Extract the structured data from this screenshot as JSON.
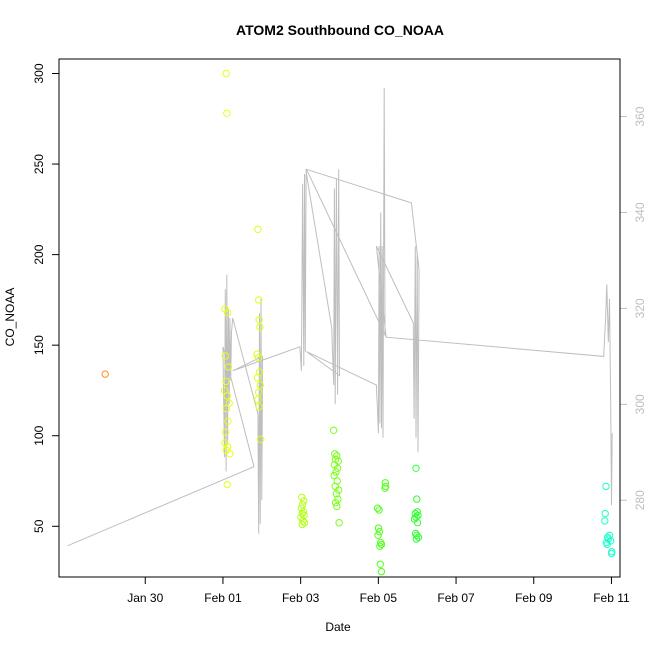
{
  "chart_data": {
    "type": "scatter",
    "title": "ATOM2 Southbound CO_NOAA",
    "xlabel": "Date",
    "ylabel": "CO_NOAA",
    "x_unit": "days from Jan 29",
    "xlim": [
      -1.22,
      13.22
    ],
    "ylim": [
      22,
      308
    ],
    "xticks": [
      {
        "v": 1,
        "label": "Jan 30"
      },
      {
        "v": 3,
        "label": "Feb 01"
      },
      {
        "v": 5,
        "label": "Feb 03"
      },
      {
        "v": 7,
        "label": "Feb 05"
      },
      {
        "v": 9,
        "label": "Feb 07"
      },
      {
        "v": 11,
        "label": "Feb 09"
      },
      {
        "v": 13,
        "label": "Feb 11"
      }
    ],
    "yticks": [
      50,
      100,
      150,
      200,
      250,
      300
    ],
    "y2lim": [
      264,
      372
    ],
    "y2ticks": [
      280,
      300,
      320,
      340,
      360
    ],
    "y2color": "#bebebe",
    "trace_color": "#bebebe",
    "points": [
      {
        "x": -0.03,
        "y": 134,
        "c": "#ff8c1a"
      },
      {
        "x": 3.08,
        "y": 300,
        "c": "#e6ff1a"
      },
      {
        "x": 3.1,
        "y": 278,
        "c": "#e6ff1a"
      },
      {
        "x": 3.05,
        "y": 170,
        "c": "#e6ff1a"
      },
      {
        "x": 3.12,
        "y": 168,
        "c": "#e6ff1a"
      },
      {
        "x": 3.06,
        "y": 144,
        "c": "#e6ff1a"
      },
      {
        "x": 3.14,
        "y": 138,
        "c": "#e6ff1a"
      },
      {
        "x": 3.08,
        "y": 130,
        "c": "#e6ff1a"
      },
      {
        "x": 3.04,
        "y": 125,
        "c": "#e6ff1a"
      },
      {
        "x": 3.11,
        "y": 122,
        "c": "#e6ff1a"
      },
      {
        "x": 3.16,
        "y": 118,
        "c": "#e6ff1a"
      },
      {
        "x": 3.09,
        "y": 115,
        "c": "#e6ff1a"
      },
      {
        "x": 3.13,
        "y": 108,
        "c": "#e6ff1a"
      },
      {
        "x": 3.07,
        "y": 102,
        "c": "#e6ff1a"
      },
      {
        "x": 3.05,
        "y": 96,
        "c": "#e6ff1a"
      },
      {
        "x": 3.12,
        "y": 94,
        "c": "#e6ff1a"
      },
      {
        "x": 3.09,
        "y": 92,
        "c": "#e6ff1a"
      },
      {
        "x": 3.18,
        "y": 90,
        "c": "#e6ff1a"
      },
      {
        "x": 3.11,
        "y": 73,
        "c": "#e6ff1a"
      },
      {
        "x": 3.9,
        "y": 214,
        "c": "#dcff1a"
      },
      {
        "x": 3.92,
        "y": 175,
        "c": "#dcff1a"
      },
      {
        "x": 3.93,
        "y": 164,
        "c": "#dcff1a"
      },
      {
        "x": 3.95,
        "y": 160,
        "c": "#dcff1a"
      },
      {
        "x": 3.88,
        "y": 145,
        "c": "#dcff1a"
      },
      {
        "x": 3.91,
        "y": 143,
        "c": "#dcff1a"
      },
      {
        "x": 3.94,
        "y": 135,
        "c": "#dcff1a"
      },
      {
        "x": 3.89,
        "y": 132,
        "c": "#dcff1a"
      },
      {
        "x": 3.96,
        "y": 128,
        "c": "#dcff1a"
      },
      {
        "x": 3.92,
        "y": 124,
        "c": "#dcff1a"
      },
      {
        "x": 3.9,
        "y": 120,
        "c": "#dcff1a"
      },
      {
        "x": 3.93,
        "y": 116,
        "c": "#dcff1a"
      },
      {
        "x": 3.97,
        "y": 98,
        "c": "#dcff1a"
      },
      {
        "x": 5.03,
        "y": 66,
        "c": "#b4ff1a"
      },
      {
        "x": 5.08,
        "y": 64,
        "c": "#b4ff1a"
      },
      {
        "x": 5.05,
        "y": 62,
        "c": "#b4ff1a"
      },
      {
        "x": 5.02,
        "y": 60,
        "c": "#b4ff1a"
      },
      {
        "x": 5.07,
        "y": 58,
        "c": "#b4ff1a"
      },
      {
        "x": 5.04,
        "y": 57,
        "c": "#b4ff1a"
      },
      {
        "x": 5.09,
        "y": 56,
        "c": "#b4ff1a"
      },
      {
        "x": 5.01,
        "y": 55,
        "c": "#b4ff1a"
      },
      {
        "x": 5.06,
        "y": 53,
        "c": "#b4ff1a"
      },
      {
        "x": 5.1,
        "y": 52,
        "c": "#b4ff1a"
      },
      {
        "x": 5.04,
        "y": 51,
        "c": "#b4ff1a"
      },
      {
        "x": 5.85,
        "y": 103,
        "c": "#78ff1a"
      },
      {
        "x": 5.88,
        "y": 90,
        "c": "#78ff1a"
      },
      {
        "x": 5.93,
        "y": 89,
        "c": "#78ff1a"
      },
      {
        "x": 5.9,
        "y": 87,
        "c": "#78ff1a"
      },
      {
        "x": 5.97,
        "y": 86,
        "c": "#78ff1a"
      },
      {
        "x": 5.87,
        "y": 84,
        "c": "#78ff1a"
      },
      {
        "x": 5.95,
        "y": 82,
        "c": "#78ff1a"
      },
      {
        "x": 5.91,
        "y": 80,
        "c": "#78ff1a"
      },
      {
        "x": 5.86,
        "y": 78,
        "c": "#78ff1a"
      },
      {
        "x": 5.94,
        "y": 75,
        "c": "#78ff1a"
      },
      {
        "x": 5.89,
        "y": 72,
        "c": "#78ff1a"
      },
      {
        "x": 5.98,
        "y": 70,
        "c": "#78ff1a"
      },
      {
        "x": 5.92,
        "y": 68,
        "c": "#78ff1a"
      },
      {
        "x": 5.96,
        "y": 65,
        "c": "#78ff1a"
      },
      {
        "x": 5.9,
        "y": 63,
        "c": "#78ff1a"
      },
      {
        "x": 5.93,
        "y": 61,
        "c": "#78ff1a"
      },
      {
        "x": 5.99,
        "y": 52,
        "c": "#78ff1a"
      },
      {
        "x": 6.98,
        "y": 60,
        "c": "#50ff1a"
      },
      {
        "x": 7.02,
        "y": 59,
        "c": "#50ff1a"
      },
      {
        "x": 7.0,
        "y": 49,
        "c": "#50ff1a"
      },
      {
        "x": 7.03,
        "y": 47,
        "c": "#50ff1a"
      },
      {
        "x": 6.99,
        "y": 45,
        "c": "#50ff1a"
      },
      {
        "x": 7.06,
        "y": 41,
        "c": "#50ff1a"
      },
      {
        "x": 7.08,
        "y": 40,
        "c": "#50ff1a"
      },
      {
        "x": 7.04,
        "y": 39,
        "c": "#50ff1a"
      },
      {
        "x": 7.05,
        "y": 29,
        "c": "#50ff1a"
      },
      {
        "x": 7.08,
        "y": 25,
        "c": "#50ff1a"
      },
      {
        "x": 7.18,
        "y": 74,
        "c": "#50ff1a"
      },
      {
        "x": 7.19,
        "y": 72,
        "c": "#50ff1a"
      },
      {
        "x": 7.17,
        "y": 71,
        "c": "#50ff1a"
      },
      {
        "x": 7.97,
        "y": 82,
        "c": "#32ff32"
      },
      {
        "x": 7.99,
        "y": 65,
        "c": "#32ff32"
      },
      {
        "x": 8.0,
        "y": 58,
        "c": "#32ff32"
      },
      {
        "x": 7.95,
        "y": 57,
        "c": "#32ff32"
      },
      {
        "x": 8.02,
        "y": 56,
        "c": "#32ff32"
      },
      {
        "x": 7.97,
        "y": 55,
        "c": "#32ff32"
      },
      {
        "x": 7.93,
        "y": 54,
        "c": "#32ff32"
      },
      {
        "x": 8.01,
        "y": 52,
        "c": "#32ff32"
      },
      {
        "x": 7.96,
        "y": 46,
        "c": "#32ff32"
      },
      {
        "x": 7.99,
        "y": 45,
        "c": "#32ff32"
      },
      {
        "x": 8.03,
        "y": 44,
        "c": "#32ff32"
      },
      {
        "x": 7.98,
        "y": 43,
        "c": "#32ff32"
      },
      {
        "x": 12.86,
        "y": 72,
        "c": "#1affcc"
      },
      {
        "x": 12.84,
        "y": 57,
        "c": "#1affcc"
      },
      {
        "x": 12.83,
        "y": 53,
        "c": "#1affcc"
      },
      {
        "x": 12.95,
        "y": 45,
        "c": "#1affcc"
      },
      {
        "x": 12.9,
        "y": 44,
        "c": "#1affcc"
      },
      {
        "x": 12.92,
        "y": 43,
        "c": "#1affcc"
      },
      {
        "x": 12.98,
        "y": 42,
        "c": "#1affcc"
      },
      {
        "x": 12.87,
        "y": 41,
        "c": "#1affcc"
      },
      {
        "x": 12.89,
        "y": 40,
        "c": "#1affcc"
      },
      {
        "x": 13.01,
        "y": 36,
        "c": "#1affcc"
      },
      {
        "x": 13.0,
        "y": 35,
        "c": "#1affcc"
      }
    ],
    "trace": [
      [
        -1.0,
        270.5
      ],
      [
        3.8,
        287
      ],
      [
        3.0,
        312
      ],
      [
        3.04,
        289
      ],
      [
        3.06,
        324
      ],
      [
        3.08,
        286
      ],
      [
        3.1,
        327
      ],
      [
        3.12,
        292
      ],
      [
        3.14,
        320
      ],
      [
        3.16,
        300
      ],
      [
        3.18,
        318
      ],
      [
        3.2,
        305
      ],
      [
        3.22,
        315
      ],
      [
        3.25,
        318
      ],
      [
        3.9,
        298
      ],
      [
        3.92,
        273
      ],
      [
        3.94,
        319
      ],
      [
        3.96,
        275
      ],
      [
        3.98,
        322
      ],
      [
        4.0,
        280
      ],
      [
        4.02,
        310
      ],
      [
        3.25,
        307
      ],
      [
        4.98,
        312
      ],
      [
        5.02,
        307
      ],
      [
        5.05,
        346
      ],
      [
        5.08,
        308
      ],
      [
        5.1,
        348
      ],
      [
        5.12,
        311
      ],
      [
        5.14,
        349
      ],
      [
        5.15,
        348
      ],
      [
        5.8,
        316
      ],
      [
        5.85,
        304
      ],
      [
        5.87,
        345
      ],
      [
        5.89,
        300
      ],
      [
        5.92,
        347
      ],
      [
        5.95,
        302
      ],
      [
        5.98,
        349
      ],
      [
        6.0,
        306
      ],
      [
        5.15,
        311
      ],
      [
        6.95,
        304
      ],
      [
        7.0,
        294
      ],
      [
        7.02,
        333
      ],
      [
        7.04,
        296
      ],
      [
        7.06,
        340
      ],
      [
        7.08,
        295
      ],
      [
        7.1,
        333
      ],
      [
        7.12,
        293
      ],
      [
        7.15,
        366
      ],
      [
        7.17,
        315
      ],
      [
        7.2,
        314
      ],
      [
        6.95,
        333
      ],
      [
        7.9,
        317
      ],
      [
        7.92,
        297
      ],
      [
        7.95,
        333
      ],
      [
        7.97,
        293
      ],
      [
        8.0,
        332
      ],
      [
        8.02,
        290
      ],
      [
        8.05,
        328
      ],
      [
        7.85,
        342
      ],
      [
        5.15,
        349
      ],
      [
        7.2,
        314
      ],
      [
        12.8,
        310
      ],
      [
        12.85,
        318
      ],
      [
        12.88,
        325
      ],
      [
        12.92,
        313
      ],
      [
        12.95,
        322
      ],
      [
        12.98,
        300
      ],
      [
        13.0,
        279
      ],
      [
        13.02,
        294
      ]
    ]
  }
}
